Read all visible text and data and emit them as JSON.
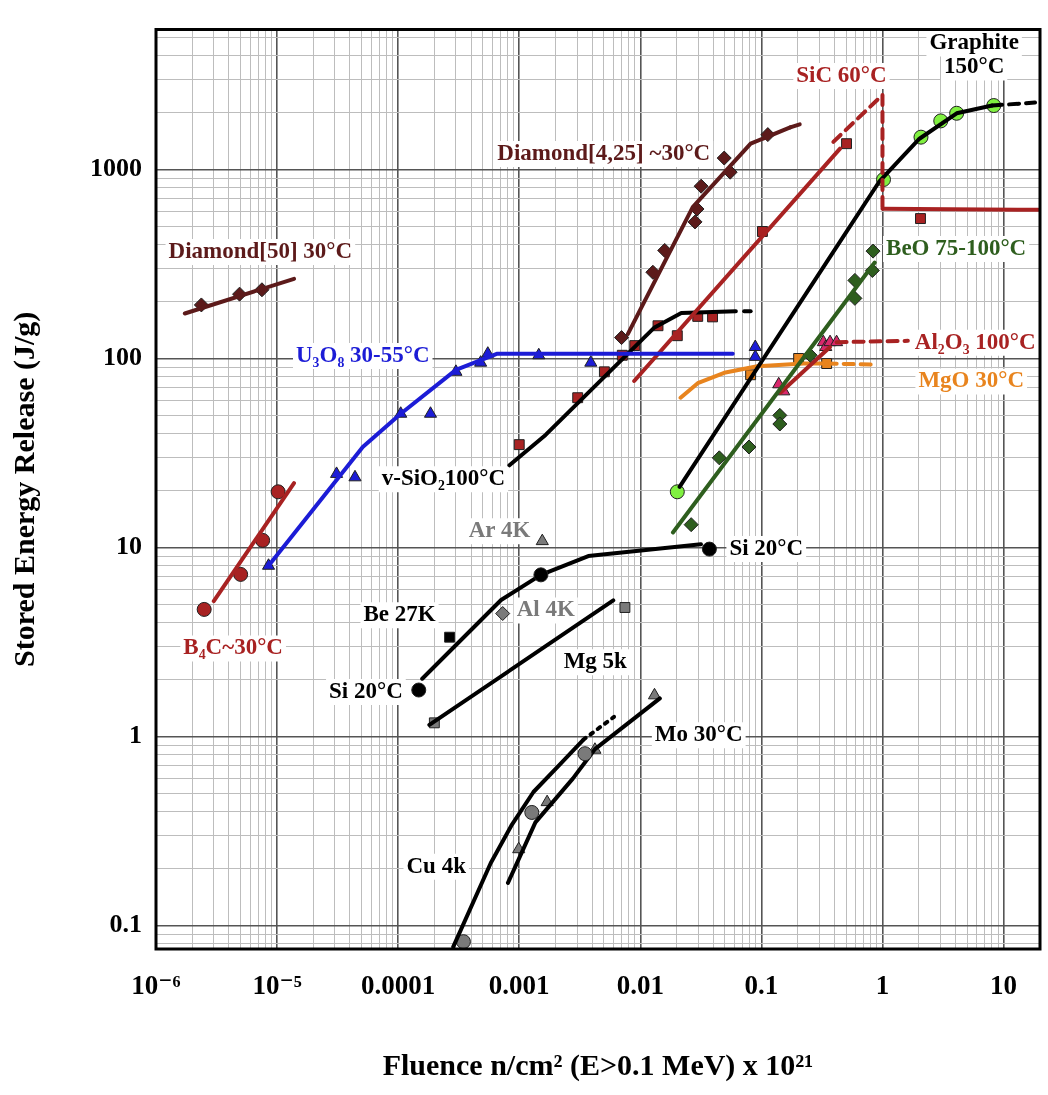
{
  "chart_data": {
    "type": "line",
    "xlabel": "Fluence n/cm² (E>0.1 MeV) x 10²¹",
    "ylabel": "Stored Energy Release (J/g)",
    "log": "xy",
    "grid": true,
    "xlim": [
      1e-06,
      20
    ],
    "ylim": [
      0.075,
      5500
    ],
    "xticks": [
      {
        "value": 1e-06,
        "label": "10⁻⁶"
      },
      {
        "value": 2e-06,
        "label": null
      },
      {
        "value": 3e-06,
        "label": null
      },
      {
        "value": 4e-06,
        "label": null
      },
      {
        "value": 5e-06,
        "label": null
      },
      {
        "value": 6e-06,
        "label": null
      },
      {
        "value": 7e-06,
        "label": null
      },
      {
        "value": 8e-06,
        "label": null
      },
      {
        "value": 9e-06,
        "label": null
      },
      {
        "value": 1e-05,
        "label": "10⁻⁵"
      },
      {
        "value": 2e-05,
        "label": null
      },
      {
        "value": 3e-05,
        "label": null
      },
      {
        "value": 4e-05,
        "label": null
      },
      {
        "value": 5e-05,
        "label": null
      },
      {
        "value": 6e-05,
        "label": null
      },
      {
        "value": 7e-05,
        "label": null
      },
      {
        "value": 8e-05,
        "label": null
      },
      {
        "value": 9e-05,
        "label": null
      },
      0.0001,
      {
        "value": 0.0002,
        "label": null
      },
      {
        "value": 0.0003,
        "label": null
      },
      {
        "value": 0.0004,
        "label": null
      },
      {
        "value": 0.0005,
        "label": null
      },
      {
        "value": 0.0006,
        "label": null
      },
      {
        "value": 0.0007,
        "label": null
      },
      {
        "value": 0.0008,
        "label": null
      },
      {
        "value": 0.0009,
        "label": null
      },
      0.001,
      {
        "value": 0.002,
        "label": null
      },
      {
        "value": 0.003,
        "label": null
      },
      {
        "value": 0.004,
        "label": null
      },
      {
        "value": 0.005,
        "label": null
      },
      {
        "value": 0.006,
        "label": null
      },
      {
        "value": 0.007,
        "label": null
      },
      {
        "value": 0.008,
        "label": null
      },
      {
        "value": 0.009,
        "label": null
      },
      0.01,
      {
        "value": 0.02,
        "label": null
      },
      {
        "value": 0.03,
        "label": null
      },
      {
        "value": 0.04,
        "label": null
      },
      {
        "value": 0.05,
        "label": null
      },
      {
        "value": 0.06,
        "label": null
      },
      {
        "value": 0.07,
        "label": null
      },
      {
        "value": 0.08,
        "label": null
      },
      {
        "value": 0.09,
        "label": null
      },
      0.1,
      {
        "value": 0.2,
        "label": null
      },
      {
        "value": 0.3,
        "label": null
      },
      {
        "value": 0.4,
        "label": null
      },
      {
        "value": 0.5,
        "label": null
      },
      {
        "value": 0.6,
        "label": null
      },
      {
        "value": 0.7,
        "label": null
      },
      {
        "value": 0.8,
        "label": null
      },
      {
        "value": 0.9,
        "label": null
      },
      1,
      {
        "value": 2,
        "label": null
      },
      {
        "value": 3,
        "label": null
      },
      {
        "value": 4,
        "label": null
      },
      {
        "value": 5,
        "label": null
      },
      {
        "value": 6,
        "label": null
      },
      {
        "value": 7,
        "label": null
      },
      {
        "value": 8,
        "label": null
      },
      {
        "value": 9,
        "label": null
      },
      10
    ],
    "yticks": [
      {
        "value": 0.08,
        "label": null
      },
      {
        "value": 0.09,
        "label": null
      },
      0.1,
      {
        "value": 0.2,
        "label": null
      },
      {
        "value": 0.3,
        "label": null
      },
      {
        "value": 0.4,
        "label": null
      },
      {
        "value": 0.5,
        "label": null
      },
      {
        "value": 0.6,
        "label": null
      },
      {
        "value": 0.7,
        "label": null
      },
      {
        "value": 0.8,
        "label": null
      },
      {
        "value": 0.9,
        "label": null
      },
      1,
      {
        "value": 2,
        "label": null
      },
      {
        "value": 3,
        "label": null
      },
      {
        "value": 4,
        "label": null
      },
      {
        "value": 5,
        "label": null
      },
      {
        "value": 6,
        "label": null
      },
      {
        "value": 7,
        "label": null
      },
      {
        "value": 8,
        "label": null
      },
      {
        "value": 9,
        "label": null
      },
      10,
      {
        "value": 20,
        "label": null
      },
      {
        "value": 30,
        "label": null
      },
      {
        "value": 40,
        "label": null
      },
      {
        "value": 50,
        "label": null
      },
      {
        "value": 60,
        "label": null
      },
      {
        "value": 70,
        "label": null
      },
      {
        "value": 80,
        "label": null
      },
      {
        "value": 90,
        "label": null
      },
      100,
      {
        "value": 200,
        "label": null
      },
      {
        "value": 300,
        "label": null
      },
      {
        "value": 400,
        "label": null
      },
      {
        "value": 500,
        "label": null
      },
      {
        "value": 600,
        "label": null
      },
      {
        "value": 700,
        "label": null
      },
      {
        "value": 800,
        "label": null
      },
      {
        "value": 900,
        "label": null
      },
      1000,
      {
        "value": 2000,
        "label": null
      },
      {
        "value": 3000,
        "label": null
      },
      {
        "value": 4000,
        "label": null
      },
      {
        "value": 5000,
        "label": null
      }
    ],
    "series": [
      {
        "color": "#5c1a1a",
        "x": [
          1.73e-06,
          1.38e-05
        ],
        "values": [
          173,
          264
        ]
      },
      {
        "type": "scatter",
        "marker": "diamond",
        "name": "Diamond[50] 30°C",
        "color": "#5c1a1a",
        "x": [
          2.37e-06,
          4.9e-06,
          7.5e-06
        ],
        "values": [
          192,
          219,
          231
        ]
      },
      {
        "color": "#a82222",
        "x": [
          3e-06,
          1.38e-05
        ],
        "values": [
          5.2,
          21.9
        ]
      },
      {
        "type": "scatter",
        "marker": "circle",
        "name": "B₄C~30°C",
        "color": "#a82222",
        "x": [
          2.5e-06,
          5e-06,
          7.6e-06,
          1.02e-05
        ],
        "values": [
          4.7,
          7.2,
          10.9,
          19.7
        ]
      },
      {
        "name": "U₃O₈ 30-55°C",
        "color": "#1c1cd6",
        "x": [
          8.5e-06,
          5.1e-05,
          0.000105,
          0.0003,
          0.00066,
          0.058
        ],
        "values": [
          8.0,
          34,
          51,
          87,
          106,
          106
        ]
      },
      {
        "type": "scatter",
        "marker": "triangle",
        "color": "#1c1cd6",
        "x": [
          8.5e-06,
          3.1e-05,
          4.4e-05,
          0.000105,
          0.000185,
          0.0003,
          0.00048,
          0.00055,
          0.00145,
          0.0039,
          0.089,
          0.089
        ],
        "values": [
          8.0,
          24.5,
          23.5,
          51,
          51,
          85,
          95,
          106,
          104,
          95,
          115,
          102
        ]
      },
      {
        "color": "#5c1a1a",
        "x": [
          0.0079,
          0.0271,
          0.0815,
          0.173
        ],
        "values": [
          135,
          633,
          1370,
          1670
        ]
      },
      {
        "type": "line",
        "line_style": "dashed",
        "color": "#5c1a1a",
        "x": [
          0.173,
          0.223
        ],
        "values": [
          1670,
          1760
        ]
      },
      {
        "type": "scatter",
        "marker": "diamond",
        "name": "Diamond[4,25] ~30°C",
        "color": "#5c1a1a",
        "x": [
          0.007,
          0.0127,
          0.0159,
          0.0283,
          0.0294,
          0.0318,
          0.0493,
          0.0552,
          0.113
        ],
        "values": [
          129,
          286,
          373,
          528,
          618,
          816,
          1150,
          968,
          1530
        ]
      },
      {
        "color": "#a82222",
        "x": [
          0.0089,
          0.446
        ],
        "values": [
          76,
          1290
        ]
      },
      {
        "line_style": "dashed",
        "name": "SiC 60°C",
        "color": "#a82222",
        "x": [
          0.393,
          1.0,
          1.0
        ],
        "values": [
          1400,
          2480,
          620
        ]
      },
      {
        "type": "line",
        "color": "#a82222",
        "x": [
          1.0,
          19.4
        ],
        "values": [
          620,
          612
        ]
      },
      {
        "type": "scatter",
        "marker": "square",
        "color": "#a82222",
        "x": [
          0.0202,
          0.102,
          0.505,
          2.06
        ],
        "values": [
          132,
          470,
          1370,
          550
        ]
      },
      {
        "name": "Graphite 150°C",
        "color": "#000000",
        "x": [
          0.0211,
          0.948,
          2.02,
          4.1,
          8.05
        ],
        "values": [
          20.9,
          869,
          1455,
          1984,
          2180
        ]
      },
      {
        "type": "line",
        "line_style": "dashed",
        "color": "#000000",
        "x": [
          8.05,
          18.2
        ],
        "values": [
          2180,
          2260
        ]
      },
      {
        "type": "scatter",
        "marker": "circle",
        "color": "#80f040",
        "x": [
          0.0202,
          1.02,
          2.08,
          3.03,
          4.1,
          8.3
        ],
        "values": [
          19.7,
          885,
          1483,
          1808,
          1984,
          2180
        ]
      },
      {
        "color": "#2e5e1e",
        "x": [
          0.0186,
          0.863
        ],
        "values": [
          12.0,
          322
        ]
      },
      {
        "type": "scatter",
        "marker": "diamond",
        "name": "BeO 75-100°C",
        "color": "#2e5e1e",
        "x": [
          0.0263,
          0.0449,
          0.079,
          0.142,
          0.142,
          0.253,
          0.592,
          0.592,
          0.825,
          0.836
        ],
        "values": [
          13.2,
          29.8,
          34,
          50,
          45,
          104,
          208,
          259,
          292,
          370
        ]
      },
      {
        "type": "line",
        "color": "#a82222",
        "x": [
          0.144,
          0.369
        ],
        "values": [
          66,
          115
        ]
      },
      {
        "type": "line",
        "line_style": "dashed",
        "name": "Al₂O₃ 100°C",
        "color": "#a82222",
        "x": [
          0.418,
          1.62
        ],
        "values": [
          122,
          124
        ]
      },
      {
        "type": "scatter",
        "marker": "triangle",
        "color": "#d8286c",
        "x": [
          0.139,
          0.153,
          0.325,
          0.34,
          0.369,
          0.418
        ],
        "values": [
          73,
          67,
          122,
          115,
          122,
          122
        ]
      },
      {
        "type": "line",
        "color": "#e8841e",
        "x": [
          0.0215,
          0.0298,
          0.0493,
          0.0925,
          0.223,
          0.346
        ],
        "values": [
          62,
          74,
          84,
          91,
          94,
          94
        ]
      },
      {
        "type": "line",
        "line_style": "dashed",
        "name": "MgO 30°C",
        "color": "#e8841e",
        "x": [
          0.346,
          0.81
        ],
        "values": [
          94,
          93
        ]
      },
      {
        "type": "scatter",
        "marker": "square",
        "color": "#e8841e",
        "x": [
          0.0815,
          0.203,
          0.346
        ],
        "values": [
          82,
          100,
          94
        ]
      },
      {
        "name": "v-SiO₂100°C",
        "color": "#000000",
        "x": [
          0.00083,
          0.00165,
          0.0131,
          0.0218,
          0.0615
        ],
        "values": [
          27.2,
          39.4,
          146,
          174,
          178
        ]
      },
      {
        "type": "line",
        "line_style": "dashed",
        "color": "#000000",
        "x": [
          0.072,
          0.0815
        ],
        "values": [
          178,
          178
        ]
      },
      {
        "type": "scatter",
        "marker": "square",
        "color": "#a82222",
        "x": [
          0.001,
          0.00304,
          0.00505,
          0.0071,
          0.009,
          0.014,
          0.0298,
          0.0395
        ],
        "values": [
          35,
          62,
          85,
          104,
          117,
          149,
          167,
          166
        ]
      },
      {
        "type": "scatter",
        "marker": "circle",
        "name": "Si 20°C",
        "color": "#000000",
        "x": [
          0.00151,
          0.0372
        ],
        "values": [
          7.16,
          9.8
        ]
      },
      {
        "type": "scatter",
        "marker": "circle",
        "name": "Si 20°C",
        "color": "#000000",
        "x": [
          0.000148
        ],
        "values": [
          1.76
        ]
      },
      {
        "type": "line",
        "color": "#000000",
        "x": [
          0.000158,
          0.000708,
          0.00151,
          0.00372,
          0.0317
        ],
        "values": [
          2.02,
          5.27,
          7.16,
          9.0,
          10.4
        ]
      },
      {
        "type": "scatter",
        "marker": "triangle",
        "name": "Ar 4K",
        "color": "#7a7a7a",
        "x": [
          0.00155
        ],
        "values": [
          10.8
        ]
      },
      {
        "type": "scatter",
        "marker": "square",
        "name": "Be 27K",
        "color": "#000000",
        "x": [
          0.000266
        ],
        "values": [
          3.35
        ]
      },
      {
        "type": "scatter",
        "marker": "diamond",
        "name": "Al 4K",
        "color": "#7a7a7a",
        "x": [
          0.00073
        ],
        "values": [
          4.47
        ]
      },
      {
        "name": "Mg 5k",
        "color": "#000000",
        "x": [
          0.000181,
          0.00598
        ],
        "values": [
          1.15,
          5.25
        ]
      },
      {
        "type": "scatter",
        "marker": "square",
        "color": "#7a7a7a",
        "x": [
          0.000199,
          0.00746
        ],
        "values": [
          1.18,
          4.81
        ]
      },
      {
        "type": "line",
        "name": "Cu 4k",
        "color": "#000000",
        "x": [
          0.000285,
          0.000582,
          0.00086,
          0.00131,
          0.00214,
          0.00338
        ],
        "values": [
          0.077,
          0.214,
          0.337,
          0.508,
          0.705,
          0.96
        ]
      },
      {
        "type": "line",
        "line_style": "dotted",
        "color": "#000000",
        "x": [
          0.00338,
          0.00607
        ],
        "values": [
          0.96,
          1.27
        ]
      },
      {
        "type": "scatter",
        "marker": "circle",
        "color": "#7a7a7a",
        "x": [
          0.000346,
          0.00127,
          0.00349
        ],
        "values": [
          0.082,
          0.396,
          0.81
        ]
      },
      {
        "name": "Mo 30°C",
        "color": "#000000",
        "x": [
          0.000807,
          0.00136,
          0.00277,
          0.00422,
          0.0145
        ],
        "values": [
          0.168,
          0.351,
          0.598,
          0.857,
          1.59
        ]
      },
      {
        "type": "scatter",
        "marker": "triangle",
        "color": "#7a7a7a",
        "x": [
          0.00099,
          0.0017,
          0.00422,
          0.0131
        ],
        "values": [
          0.253,
          0.449,
          0.85,
          1.65
        ]
      }
    ]
  }
}
